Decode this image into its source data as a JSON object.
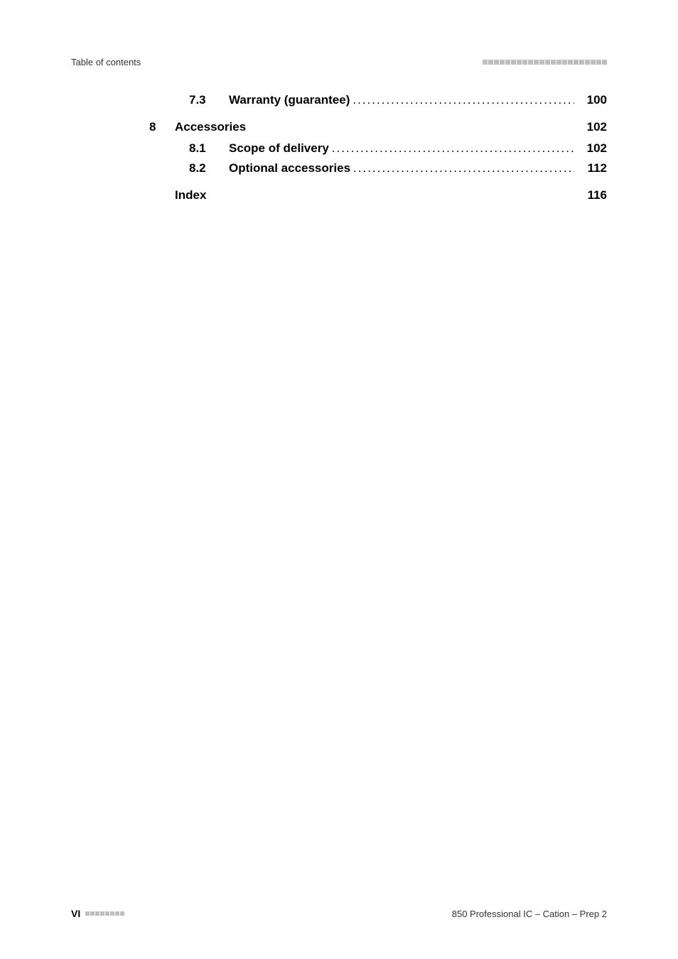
{
  "header": {
    "left": "Table of contents"
  },
  "toc": {
    "item_7_3": {
      "num": "7.3",
      "title": "Warranty (guarantee)",
      "page": "100"
    },
    "chapter_8": {
      "num": "8",
      "title": "Accessories",
      "page": "102"
    },
    "item_8_1": {
      "num": "8.1",
      "title": "Scope of delivery",
      "page": "102"
    },
    "item_8_2": {
      "num": "8.2",
      "title": "Optional accessories",
      "page": "112"
    },
    "index": {
      "title": "Index",
      "page": "116"
    }
  },
  "footer": {
    "pagenum": "VI",
    "right": "850 Professional IC – Cation – Prep 2"
  },
  "style": {
    "header_square_count": 22,
    "footer_square_count": 8,
    "square_color": "#bfbfbf",
    "text_color": "#000000",
    "header_text_color": "#333333",
    "background": "#ffffff"
  },
  "dots": ".........................................................................................................................."
}
